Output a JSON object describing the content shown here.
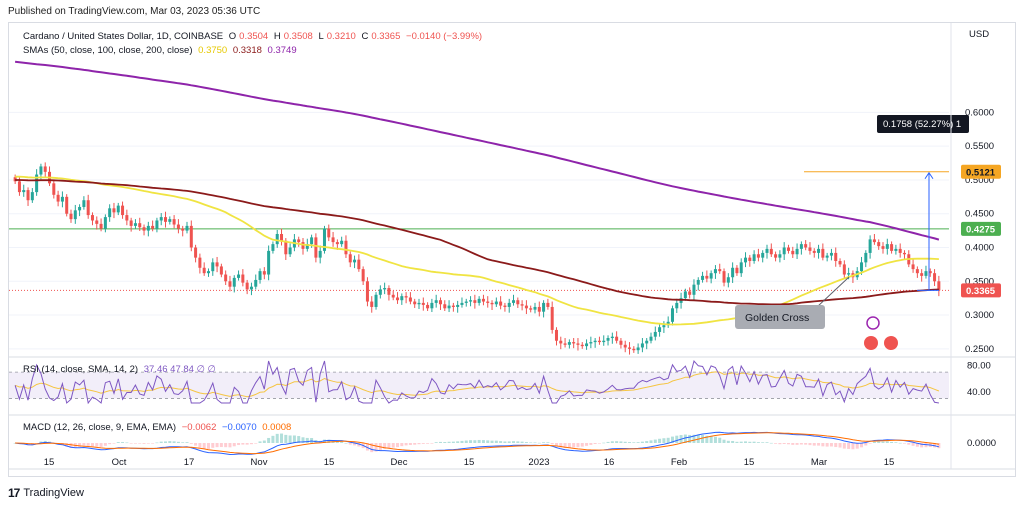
{
  "caption": "Published on TradingView.com, Mar 03, 2023 05:36 UTC",
  "legend": {
    "symbol": "Cardano / United States Dollar, 1D, COINBASE",
    "o_label": "O",
    "o": "0.3504",
    "h_label": "H",
    "h": "0.3508",
    "l_label": "L",
    "l": "0.3210",
    "c_label": "C",
    "c": "0.3365",
    "change": "−0.0140 (−3.99%)",
    "sma_label": "SMAs (50, close, 100, close, 200, close)",
    "sma50": "0.3750",
    "sma100": "0.3318",
    "sma200": "0.3749"
  },
  "rsi_label": "RSI (14, close, SMA, 14, 2)",
  "rsi_values": "37.46 47.84 ∅ ∅",
  "macd_label": "MACD (12, 26, close, 9, EMA, EMA)",
  "macd_values": {
    "hist": "−0.0062",
    "macd": "−0.0070",
    "signal": "0.0008"
  },
  "currency": "USD",
  "annotation": "Golden Cross",
  "measure_label": "0.1758 (52.27%) 1",
  "price_badges": {
    "target": "0.5121",
    "resistance": "0.4275",
    "current": "0.3365"
  },
  "footer": "TradingView",
  "colors": {
    "up": "#26a69a",
    "down": "#ef5350",
    "sma50": "#f0e442",
    "sma100": "#8b1a1a",
    "sma200": "#8e24aa",
    "target": "#f5a623",
    "resistance": "#4caf50",
    "rsi": "#7e57c2",
    "macd": "#2962ff",
    "signal": "#ff6d00"
  },
  "chart_data": {
    "type": "candlestick",
    "y_ticks": [
      0.25,
      0.3,
      0.35,
      0.4,
      0.45,
      0.5,
      0.55,
      0.6
    ],
    "y_tick_labels": [
      "0.2500",
      "0.3000",
      "0.3500",
      "0.4000",
      "0.4500",
      "0.5000",
      "0.5500",
      "0.6000"
    ],
    "ylim": [
      0.232,
      0.682
    ],
    "x_tick_labels": [
      "15",
      "Oct",
      "17",
      "Nov",
      "15",
      "Dec",
      "15",
      "2023",
      "16",
      "Feb",
      "15",
      "Mar",
      "15"
    ],
    "close": [
      0.498,
      0.482,
      0.485,
      0.47,
      0.482,
      0.508,
      0.52,
      0.512,
      0.495,
      0.478,
      0.468,
      0.475,
      0.45,
      0.442,
      0.455,
      0.46,
      0.47,
      0.448,
      0.44,
      0.435,
      0.428,
      0.445,
      0.458,
      0.452,
      0.462,
      0.448,
      0.44,
      0.432,
      0.436,
      0.43,
      0.425,
      0.432,
      0.428,
      0.44,
      0.445,
      0.438,
      0.442,
      0.434,
      0.428,
      0.425,
      0.432,
      0.4,
      0.385,
      0.37,
      0.362,
      0.365,
      0.378,
      0.372,
      0.36,
      0.35,
      0.342,
      0.355,
      0.36,
      0.348,
      0.338,
      0.342,
      0.352,
      0.365,
      0.36,
      0.395,
      0.405,
      0.42,
      0.41,
      0.39,
      0.4,
      0.412,
      0.408,
      0.398,
      0.405,
      0.415,
      0.385,
      0.395,
      0.428,
      0.415,
      0.408,
      0.405,
      0.41,
      0.39,
      0.378,
      0.382,
      0.368,
      0.35,
      0.32,
      0.312,
      0.33,
      0.338,
      0.34,
      0.33,
      0.326,
      0.322,
      0.328,
      0.326,
      0.32,
      0.316,
      0.318,
      0.315,
      0.31,
      0.318,
      0.322,
      0.316,
      0.31,
      0.314,
      0.312,
      0.315,
      0.318,
      0.32,
      0.322,
      0.318,
      0.324,
      0.32,
      0.318,
      0.316,
      0.32,
      0.314,
      0.312,
      0.318,
      0.322,
      0.316,
      0.314,
      0.31,
      0.308,
      0.312,
      0.305,
      0.318,
      0.312,
      0.278,
      0.262,
      0.258,
      0.256,
      0.26,
      0.258,
      0.256,
      0.254,
      0.258,
      0.26,
      0.262,
      0.26,
      0.262,
      0.266,
      0.268,
      0.262,
      0.256,
      0.252,
      0.25,
      0.248,
      0.252,
      0.258,
      0.262,
      0.268,
      0.275,
      0.282,
      0.285,
      0.29,
      0.31,
      0.318,
      0.325,
      0.335,
      0.33,
      0.345,
      0.352,
      0.358,
      0.354,
      0.362,
      0.368,
      0.365,
      0.348,
      0.356,
      0.37,
      0.362,
      0.378,
      0.385,
      0.38,
      0.39,
      0.385,
      0.392,
      0.398,
      0.39,
      0.385,
      0.39,
      0.4,
      0.395,
      0.39,
      0.398,
      0.405,
      0.4,
      0.395,
      0.392,
      0.398,
      0.385,
      0.388,
      0.392,
      0.38,
      0.375,
      0.36,
      0.362,
      0.356,
      0.365,
      0.378,
      0.392,
      0.412,
      0.408,
      0.402,
      0.398,
      0.405,
      0.395,
      0.398,
      0.392,
      0.39,
      0.375,
      0.368,
      0.362,
      0.358,
      0.365,
      0.362,
      0.35,
      0.3365
    ],
    "sma50_start": [
      0.505,
      0.348
    ],
    "sma100_start": [
      0.5,
      0.342
    ],
    "sma200_start": [
      0.675,
      0.375
    ],
    "levels": {
      "target": 0.5121,
      "resistance": 0.4275,
      "current": 0.3365
    },
    "rsi_ticks": [
      "80.00",
      "40.00"
    ],
    "rsi_range": [
      20,
      90
    ],
    "macd_ticks": [
      "0.0000"
    ]
  }
}
